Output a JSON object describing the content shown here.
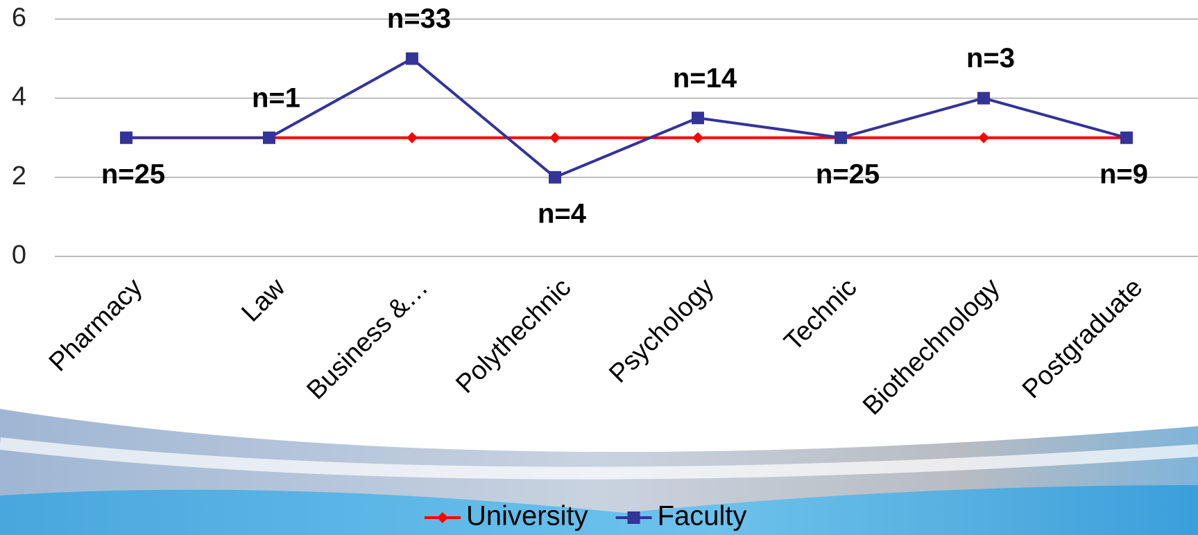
{
  "chart_data": {
    "type": "line",
    "categories": [
      "Pharmacy",
      "Law",
      "Business &…",
      "Polythechnic",
      "Psychology",
      "Technic",
      "Biothechnology",
      "Postgraduate"
    ],
    "series": [
      {
        "name": "University",
        "color": "#ff0000",
        "marker": "diamond",
        "values": [
          3,
          3,
          3,
          3,
          3,
          3,
          3,
          3
        ]
      },
      {
        "name": "Faculty",
        "color": "#333399",
        "marker": "square",
        "values": [
          3,
          3,
          5,
          2,
          3.5,
          3,
          4,
          3
        ]
      }
    ],
    "annotations": [
      "n=25",
      "n=1",
      "n=33",
      "n=4",
      "n=14",
      "n=25",
      "n=3",
      "n=9"
    ],
    "ylim": [
      0,
      6
    ],
    "yticks": [
      0,
      2,
      4,
      6
    ],
    "grid": true,
    "legend": "bottom"
  }
}
